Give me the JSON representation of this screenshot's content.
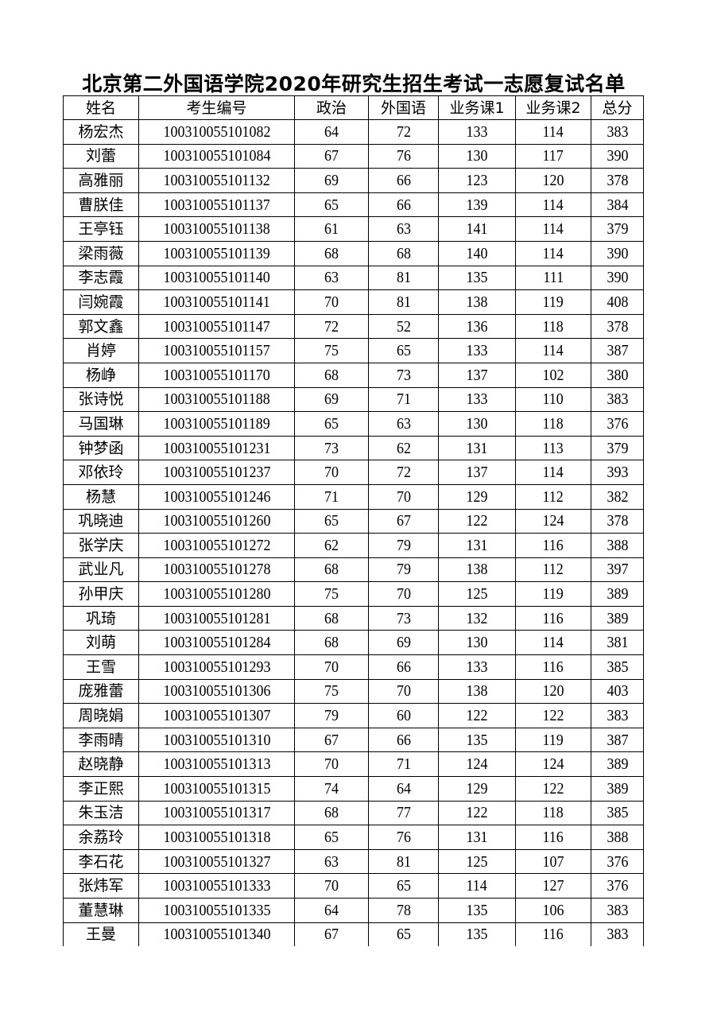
{
  "title": "北京第二外国语学院2020年研究生招生考试一志愿复试名单",
  "headers": [
    "姓名",
    "考生编号",
    "政治",
    "外国语",
    "业务课1",
    "业务课2",
    "总分"
  ],
  "rows": [
    [
      "杨宏杰",
      "100310055101082",
      "64",
      "72",
      "133",
      "114",
      "383"
    ],
    [
      "刘蕾",
      "100310055101084",
      "67",
      "76",
      "130",
      "117",
      "390"
    ],
    [
      "高雅丽",
      "100310055101132",
      "69",
      "66",
      "123",
      "120",
      "378"
    ],
    [
      "曹朕佳",
      "100310055101137",
      "65",
      "66",
      "139",
      "114",
      "384"
    ],
    [
      "王亭钰",
      "100310055101138",
      "61",
      "63",
      "141",
      "114",
      "379"
    ],
    [
      "梁雨薇",
      "100310055101139",
      "68",
      "68",
      "140",
      "114",
      "390"
    ],
    [
      "李志霞",
      "100310055101140",
      "63",
      "81",
      "135",
      "111",
      "390"
    ],
    [
      "闫婉霞",
      "100310055101141",
      "70",
      "81",
      "138",
      "119",
      "408"
    ],
    [
      "郭文鑫",
      "100310055101147",
      "72",
      "52",
      "136",
      "118",
      "378"
    ],
    [
      "肖婷",
      "100310055101157",
      "75",
      "65",
      "133",
      "114",
      "387"
    ],
    [
      "杨峥",
      "100310055101170",
      "68",
      "73",
      "137",
      "102",
      "380"
    ],
    [
      "张诗悦",
      "100310055101188",
      "69",
      "71",
      "133",
      "110",
      "383"
    ],
    [
      "马国琳",
      "100310055101189",
      "65",
      "63",
      "130",
      "118",
      "376"
    ],
    [
      "钟梦函",
      "100310055101231",
      "73",
      "62",
      "131",
      "113",
      "379"
    ],
    [
      "邓依玲",
      "100310055101237",
      "70",
      "72",
      "137",
      "114",
      "393"
    ],
    [
      "杨慧",
      "100310055101246",
      "71",
      "70",
      "129",
      "112",
      "382"
    ],
    [
      "巩晓迪",
      "100310055101260",
      "65",
      "67",
      "122",
      "124",
      "378"
    ],
    [
      "张学庆",
      "100310055101272",
      "62",
      "79",
      "131",
      "116",
      "388"
    ],
    [
      "武业凡",
      "100310055101278",
      "68",
      "79",
      "138",
      "112",
      "397"
    ],
    [
      "孙甲庆",
      "100310055101280",
      "75",
      "70",
      "125",
      "119",
      "389"
    ],
    [
      "巩琦",
      "100310055101281",
      "68",
      "73",
      "132",
      "116",
      "389"
    ],
    [
      "刘萌",
      "100310055101284",
      "68",
      "69",
      "130",
      "114",
      "381"
    ],
    [
      "王雪",
      "100310055101293",
      "70",
      "66",
      "133",
      "116",
      "385"
    ],
    [
      "庞雅蕾",
      "100310055101306",
      "75",
      "70",
      "138",
      "120",
      "403"
    ],
    [
      "周晓娟",
      "100310055101307",
      "79",
      "60",
      "122",
      "122",
      "383"
    ],
    [
      "李雨晴",
      "100310055101310",
      "67",
      "66",
      "135",
      "119",
      "387"
    ],
    [
      "赵晓静",
      "100310055101313",
      "70",
      "71",
      "124",
      "124",
      "389"
    ],
    [
      "李正熙",
      "100310055101315",
      "74",
      "64",
      "129",
      "122",
      "389"
    ],
    [
      "朱玉洁",
      "100310055101317",
      "68",
      "77",
      "122",
      "118",
      "385"
    ],
    [
      "余荔玲",
      "100310055101318",
      "65",
      "76",
      "131",
      "116",
      "388"
    ],
    [
      "李石花",
      "100310055101327",
      "63",
      "81",
      "125",
      "107",
      "376"
    ],
    [
      "张炜军",
      "100310055101333",
      "70",
      "65",
      "114",
      "127",
      "376"
    ],
    [
      "董慧琳",
      "100310055101335",
      "64",
      "78",
      "135",
      "106",
      "383"
    ],
    [
      "王曼",
      "100310055101340",
      "67",
      "65",
      "135",
      "116",
      "383"
    ]
  ]
}
